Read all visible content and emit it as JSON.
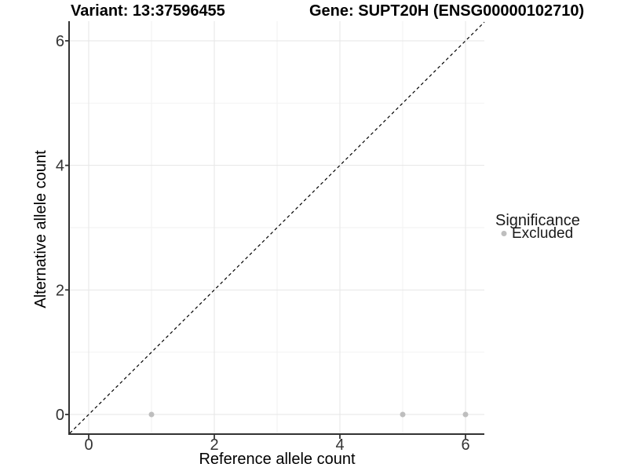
{
  "titles": {
    "variant": "Variant: 13:37596455",
    "gene": "Gene: SUPT20H (ENSG00000102710)"
  },
  "legend": {
    "title": "Significance",
    "items": [
      {
        "label": "Excluded",
        "color": "#bebebe"
      }
    ]
  },
  "colors": {
    "background": "#ffffff",
    "grid_major": "#e6e6e6",
    "grid_minor": "#f2f2f2",
    "axis": "#333333",
    "tick_text": "#333333",
    "dashed_line": "#000000",
    "point": "#bebebe"
  },
  "chart_data": {
    "type": "scatter",
    "title": "Variant: 13:37596455 — Gene: SUPT20H (ENSG00000102710)",
    "xlabel": "Reference allele count",
    "ylabel": "Alternative allele count",
    "xlim": [
      -0.3,
      6.3
    ],
    "ylim": [
      -0.315,
      6.315
    ],
    "x_ticks": [
      0,
      2,
      4,
      6
    ],
    "y_ticks": [
      0,
      2,
      4,
      6
    ],
    "x_minor_ticks": [
      1,
      3,
      5
    ],
    "y_minor_ticks": [
      1,
      3,
      5
    ],
    "grid": true,
    "legend_position": "right",
    "series": [
      {
        "name": "Excluded",
        "color": "#bebebe",
        "marker": "circle",
        "marker_radius": 3.5,
        "points": [
          [
            1,
            0
          ],
          [
            5,
            0
          ],
          [
            6,
            0
          ]
        ]
      }
    ],
    "identity_line": {
      "slope": 1,
      "intercept": 0,
      "style": "dashed",
      "color": "#000000"
    }
  }
}
